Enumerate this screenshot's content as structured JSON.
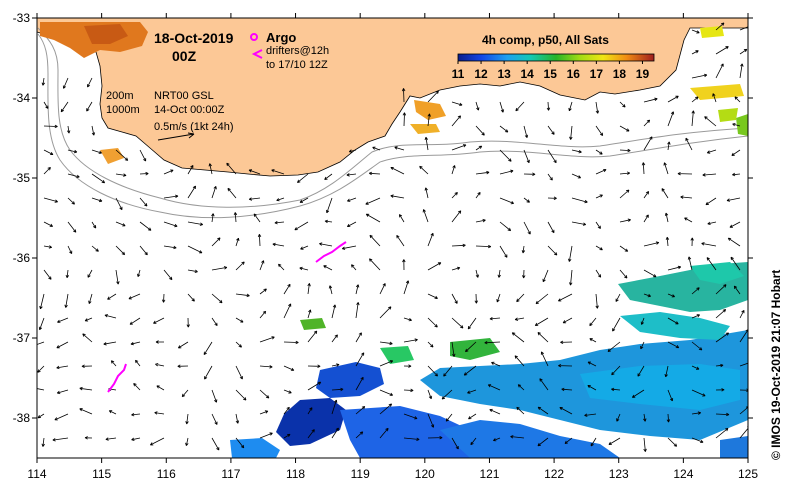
{
  "header": {
    "date": "18-Oct-2019",
    "time": "00Z"
  },
  "annotations": {
    "depth_200": "200m",
    "depth_1000": "1000m",
    "product": "NRT00 GSL",
    "product_date": "14-Oct 00:00Z",
    "vector_scale": "0.5m/s (1kt 24h)"
  },
  "legend": {
    "argo_label": "Argo",
    "drifters_line1": "drifters@12h",
    "drifters_line2": "to 17/10 12Z",
    "argo_color": "#ff00ff"
  },
  "colorbar": {
    "title": "4h comp, p50, All Sats",
    "ticks": [
      "11",
      "12",
      "13",
      "14",
      "15",
      "16",
      "17",
      "18",
      "19"
    ],
    "min": 11,
    "max": 19.5
  },
  "axes": {
    "x_ticks": [
      "114",
      "115",
      "116",
      "117",
      "118",
      "119",
      "120",
      "121",
      "122",
      "123",
      "124",
      "125"
    ],
    "y_ticks": [
      "-33",
      "-34",
      "-35",
      "-36",
      "-37",
      "-38"
    ],
    "lon_range": [
      114,
      125
    ],
    "lat_range": [
      -38.5,
      -33
    ]
  },
  "credit": "© IMOS 19-Oct-2019 21:07 Hobart",
  "colors": {
    "land": "#fcc896",
    "drifter": "#ff00ff"
  }
}
